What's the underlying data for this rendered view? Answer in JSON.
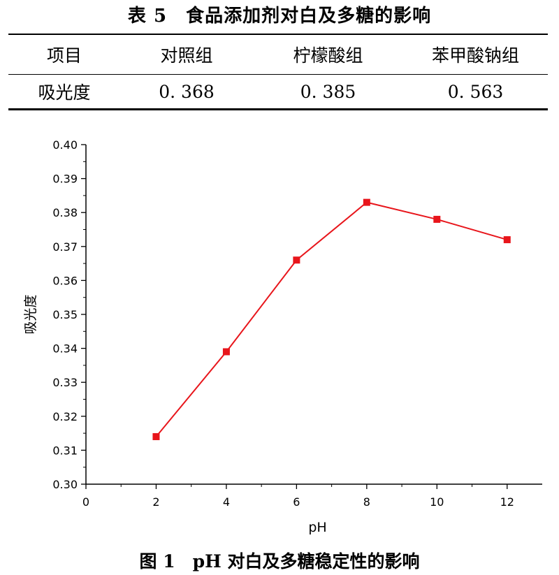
{
  "table": {
    "title": "表 5　食品添加剂对白及多糖的影响",
    "headers": [
      "项目",
      "对照组",
      "柠檬酸组",
      "苯甲酸钠组"
    ],
    "rows": [
      [
        "吸光度",
        "0. 368",
        "0. 385",
        "0. 563"
      ]
    ]
  },
  "figure_caption": "图 1　pH 对白及多糖稳定性的影响",
  "chart_data": {
    "type": "line",
    "title": "",
    "xlabel": "pH",
    "ylabel": "吸光度",
    "xlim": [
      0,
      13
    ],
    "ylim": [
      0.3,
      0.4
    ],
    "x_ticks": [
      0,
      2,
      4,
      6,
      8,
      10,
      12
    ],
    "y_ticks": [
      0.3,
      0.31,
      0.32,
      0.33,
      0.34,
      0.35,
      0.36,
      0.37,
      0.38,
      0.39,
      0.4
    ],
    "x_tick_labels": [
      "0",
      "2",
      "4",
      "6",
      "8",
      "10",
      "12"
    ],
    "y_tick_labels": [
      "0.30",
      "0.31",
      "0.32",
      "0.33",
      "0.34",
      "0.35",
      "0.36",
      "0.37",
      "0.38",
      "0.39",
      "0.40"
    ],
    "grid": false,
    "series": [
      {
        "x": [
          2,
          4,
          6,
          8,
          10,
          12
        ],
        "y": [
          0.314,
          0.339,
          0.366,
          0.383,
          0.378,
          0.372
        ],
        "color": "#e8151b",
        "marker": "square"
      }
    ]
  }
}
